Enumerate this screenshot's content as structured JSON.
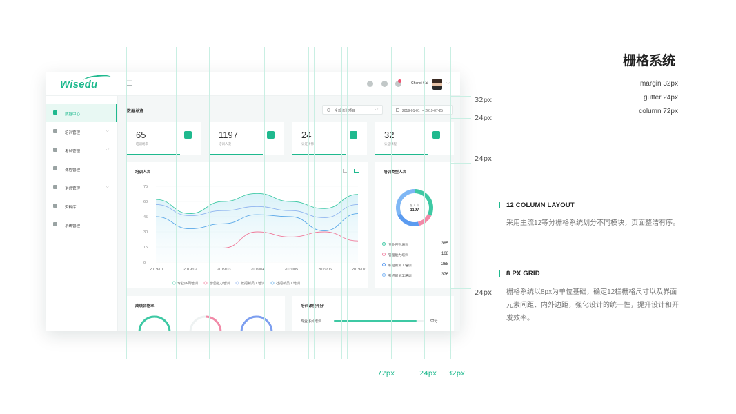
{
  "app": {
    "logo": "Wisedu",
    "user": {
      "name": "Chenxi Cai"
    },
    "nav": [
      {
        "label": "数据中心",
        "icon": "bar-chart-icon",
        "active": true
      },
      {
        "label": "培训管理",
        "icon": "user-icon",
        "has_children": true
      },
      {
        "label": "考试管理",
        "icon": "stopwatch-icon",
        "has_children": true
      },
      {
        "label": "课程管理",
        "icon": "book-icon"
      },
      {
        "label": "讲师管理",
        "icon": "teacher-icon",
        "has_children": true
      },
      {
        "label": "资料库",
        "icon": "archive-icon"
      },
      {
        "label": "系统管理",
        "icon": "gear-icon"
      }
    ],
    "page_title": "数据总览",
    "filter_select": "全部培训项目",
    "date_range": "2019-01-01 ～ 2019-07-25",
    "stats": [
      {
        "value": "65",
        "label": "培训场次",
        "icon": "calendar-icon"
      },
      {
        "value": "1197",
        "label": "培训人次",
        "icon": "people-icon"
      },
      {
        "value": "24",
        "label": "认证讲师",
        "icon": "lecturer-icon"
      },
      {
        "value": "32",
        "label": "认证课程",
        "icon": "books-icon"
      }
    ],
    "line_card": {
      "title": "培训人次"
    },
    "donut_card": {
      "title": "培训类型人次",
      "center_label": "总人次",
      "center_value": "1197",
      "legend": [
        {
          "label": "专业序列培训",
          "value": "385",
          "color": "#3ec9a4"
        },
        {
          "label": "管理能力培训",
          "value": "168",
          "color": "#f28aa8"
        },
        {
          "label": "校招新员工培训",
          "value": "268",
          "color": "#5b9bf0"
        },
        {
          "label": "社招新员工培训",
          "value": "376",
          "color": "#7fb7f5"
        }
      ]
    },
    "pass_card": {
      "title": "成绩合格率"
    },
    "score_card": {
      "title": "培训课程评分",
      "row_label": "专业序列培训",
      "row_value": "92分",
      "row_value_num": 92
    }
  },
  "chart_data": {
    "type": "line",
    "x": [
      "2019/01",
      "2019/02",
      "2019/03",
      "2019/04",
      "2019/05",
      "2019/06",
      "2019/07"
    ],
    "ylim": [
      0,
      75
    ],
    "yticks": [
      0,
      15,
      30,
      45,
      60,
      75
    ],
    "series": [
      {
        "name": "专业序列培训",
        "color": "#3ec9a4",
        "values": [
          62,
          48,
          60,
          68,
          60,
          53,
          67
        ]
      },
      {
        "name": "管理能力培训",
        "color": "#f07a9a",
        "values": [
          null,
          null,
          14,
          30,
          25,
          30,
          21
        ]
      },
      {
        "name": "校招新员工培训",
        "color": "#8fb4ef",
        "values": [
          57,
          46,
          51,
          55,
          51,
          44,
          57
        ]
      },
      {
        "name": "社招新员工培训",
        "color": "#5aa8e8",
        "values": [
          45,
          33,
          38,
          47,
          45,
          31,
          48
        ]
      }
    ]
  },
  "overlay": {
    "title": "栅格系统",
    "specs": [
      "margin 32px",
      "gutter 24px",
      "column 72px"
    ],
    "v_labels": [
      "32px",
      "24px",
      "24px",
      "24px"
    ],
    "bottom_labels": [
      "72px",
      "24px",
      "32px"
    ],
    "sections": [
      {
        "title": "12 COLUMN LAYOUT",
        "desc": "采用主流12等分栅格系统划分不同模块，页面整洁有序。"
      },
      {
        "title": "8 PX GRID",
        "desc": "栅格系统以8px为单位基础，确定12栏栅格尺寸以及界面元素间距、内外边距，强化设计的统一性，提升设计和开发效率。"
      }
    ]
  }
}
